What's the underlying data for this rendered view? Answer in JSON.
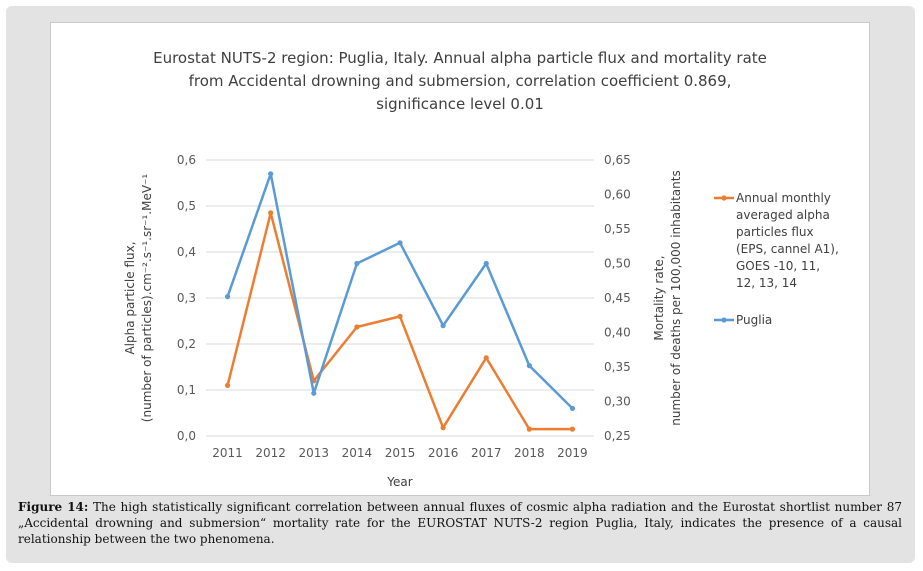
{
  "caption": {
    "label": "Figure 14:",
    "text": " The high statistically significant correlation between annual fluxes of cosmic alpha radiation and the Eurostat shortlist number 87 „Accidental drowning and submersion“ mortality rate for the EUROSTAT NUTS-2 region Puglia, Italy, indicates the presence of a causal relationship between the two phenomena."
  },
  "chart_data": {
    "type": "line",
    "title_lines": [
      "Eurostat NUTS-2 region: Puglia, Italy. Annual alpha particle flux and mortality rate",
      "from Accidental drowning and submersion, correlation coefficient 0.869,",
      "significance level 0.01"
    ],
    "x": [
      "2011",
      "2012",
      "2013",
      "2014",
      "2015",
      "2016",
      "2017",
      "2018",
      "2019"
    ],
    "xlabel": "Year",
    "ylabel_left": [
      "Alpha particle flux,",
      "(number of particles).cm⁻².s⁻¹.sr⁻¹.MeV⁻¹"
    ],
    "ylabel_right": [
      "Mortality rate,",
      "number of deaths per 100,000 inhabitants"
    ],
    "ylim_left": [
      0,
      0.6
    ],
    "yticks_left": [
      "0,0",
      "0,1",
      "0,2",
      "0,3",
      "0,4",
      "0,5",
      "0,6"
    ],
    "ylim_right": [
      0.25,
      0.65
    ],
    "yticks_right": [
      "0,25",
      "0,30",
      "0,35",
      "0,40",
      "0,45",
      "0,50",
      "0,55",
      "0,60",
      "0,65"
    ],
    "grid": true,
    "legend_position": "right",
    "series": [
      {
        "name": "Annual monthly averaged alpha particles flux (EPS, cannel A1), GOES -10, 11, 12, 13, 14",
        "legend_lines": [
          "Annual monthly",
          "averaged alpha",
          "particles flux",
          "(EPS, cannel A1),",
          "GOES -10, 11,",
          "12, 13, 14"
        ],
        "axis": "left",
        "color": "#ed7d31",
        "values": [
          0.11,
          0.485,
          0.12,
          0.237,
          0.26,
          0.018,
          0.17,
          0.015,
          0.015
        ]
      },
      {
        "name": "Puglia",
        "legend_lines": [
          "Puglia"
        ],
        "axis": "right",
        "color": "#5b9bd5",
        "values": [
          0.452,
          0.63,
          0.312,
          0.5,
          0.53,
          0.41,
          0.5,
          0.352,
          0.29
        ]
      }
    ]
  }
}
